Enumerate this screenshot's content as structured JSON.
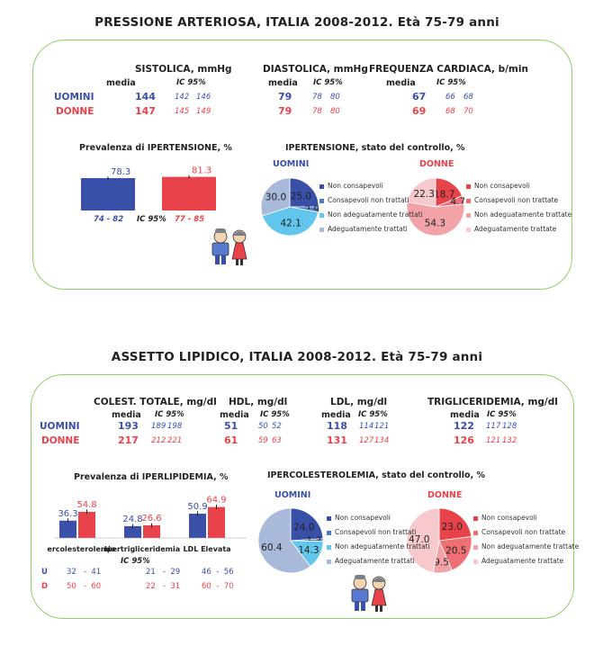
{
  "section1": {
    "title": "PRESSIONE ARTERIOSA, ITALIA 2008-2012. Età 75-79 anni",
    "table": {
      "groups": [
        "SISTOLICA, mmHg",
        "DIASTOLICA, mmHg",
        "FREQUENZA CARDIACA, b/min"
      ],
      "mean_label": "media",
      "ic_label": "IC 95%",
      "rows": [
        {
          "label": "UOMINI",
          "cells": [
            [
              "144",
              "142",
              "146"
            ],
            [
              "79",
              "78",
              "80"
            ],
            [
              "67",
              "66",
              "68"
            ]
          ]
        },
        {
          "label": "DONNE",
          "cells": [
            [
              "147",
              "145",
              "149"
            ],
            [
              "79",
              "78",
              "80"
            ],
            [
              "69",
              "68",
              "70"
            ]
          ]
        }
      ]
    },
    "prev_title": "Prevalenza di IPERTENSIONE, %",
    "prev_ci": [
      "74 - 82",
      "77 - 85"
    ],
    "prev_ic_label": "IC 95%",
    "control_title": "IPERTENSIONE, stato del controllo, %",
    "men_label": "UOMINI",
    "women_label": "DONNE",
    "legend_men": [
      "Non consapevoli",
      "Consapevoli non trattati",
      "Non adeguatamente trattati",
      "Adeguatamente trattati"
    ],
    "legend_women": [
      "Non consapevoli",
      "Consapevoli non trattate",
      "Non adeguatamente trattate",
      "Adeguatamente trattate"
    ]
  },
  "section2": {
    "title": "ASSETTO LIPIDICO, ITALIA 2008-2012. Età 75-79 anni",
    "table": {
      "groups": [
        "COLEST. TOTALE, mg/dl",
        "HDL, mg/dl",
        "LDL, mg/dl",
        "TRIGLICERIDEMIA, mg/dl"
      ],
      "mean_label": "media",
      "ic_label": "IC 95%",
      "rows": [
        {
          "label": "UOMINI",
          "cells": [
            [
              "193",
              "189",
              "198"
            ],
            [
              "51",
              "50",
              "52"
            ],
            [
              "118",
              "114",
              "121"
            ],
            [
              "122",
              "117",
              "128"
            ]
          ]
        },
        {
          "label": "DONNE",
          "cells": [
            [
              "217",
              "212",
              "221"
            ],
            [
              "61",
              "59",
              "63"
            ],
            [
              "131",
              "127",
              "134"
            ],
            [
              "126",
              "121",
              "132"
            ]
          ]
        }
      ]
    },
    "prev_title": "Prevalenza di IPERLIPIDEMIA, %",
    "prev_ic_label": "IC 95%",
    "ci_rows": [
      {
        "label": "U",
        "values": [
          "32   -  41",
          "21   -  29",
          "46  -  56"
        ]
      },
      {
        "label": "D",
        "values": [
          "50   -  60",
          "22   -  31",
          "60  -  70"
        ]
      }
    ],
    "control_title": "IPERCOLESTEROLEMIA, stato del controllo, %",
    "men_label": "UOMINI",
    "women_label": "DONNE",
    "legend_men": [
      "Non consapevoli",
      "Consapevoli non trattati",
      "Non adeguatamente trattati",
      "Adeguatamente trattati"
    ],
    "legend_women": [
      "Non consapevoli",
      "Consapevoli non trattate",
      "Non adeguatamente trattate",
      "Adeguatamente trattate"
    ]
  },
  "colors": {
    "men": "#3a4fa8",
    "women": "#e8434b",
    "panel_border": "#8fd06a",
    "men_pie": [
      "#3a4fa8",
      "#4a7cc4",
      "#62c6ec",
      "#a9b9da"
    ],
    "women_pie": [
      "#e8434b",
      "#ee6f74",
      "#f3a3a8",
      "#f7c9cd"
    ]
  },
  "chart_data": [
    {
      "type": "bar",
      "title": "Prevalenza di IPERTENSIONE, %",
      "series": [
        {
          "name": "UOMINI",
          "values": [
            78.3
          ],
          "ci": [
            [
              74,
              82
            ]
          ]
        },
        {
          "name": "DONNE",
          "values": [
            81.3
          ],
          "ci": [
            [
              77,
              85
            ]
          ]
        }
      ],
      "ylim": [
        0,
        100
      ]
    },
    {
      "type": "pie",
      "title": "IPERTENSIONE, stato del controllo, % — UOMINI",
      "labels": [
        "Non consapevoli",
        "Consapevoli non trattati",
        "Non adeguatamente trattati",
        "Adeguatamente trattati"
      ],
      "values": [
        25.0,
        2.9,
        42.1,
        30.0
      ],
      "value_labels": [
        "25.0",
        "2.9",
        "42.1",
        "30.0"
      ]
    },
    {
      "type": "pie",
      "title": "IPERTENSIONE, stato del controllo, % — DONNE",
      "labels": [
        "Non consapevoli",
        "Consapevoli non trattate",
        "Non adeguatamente trattate",
        "Adeguatamente trattate"
      ],
      "values": [
        18.7,
        4.7,
        54.3,
        22.3
      ],
      "value_labels": [
        "18.7",
        "4.7",
        "54.3",
        "22.3"
      ]
    },
    {
      "type": "bar",
      "title": "Prevalenza di IPERLIPIDEMIA, %",
      "categories": [
        "Ipercolesterolemia",
        "Ipertrigliceridemia",
        "LDL Elevata"
      ],
      "series": [
        {
          "name": "U",
          "values": [
            36.3,
            24.8,
            50.9
          ],
          "ci": [
            [
              32,
              41
            ],
            [
              21,
              29
            ],
            [
              46,
              56
            ]
          ]
        },
        {
          "name": "D",
          "values": [
            54.8,
            26.6,
            64.9
          ],
          "ci": [
            [
              50,
              60
            ],
            [
              22,
              31
            ],
            [
              60,
              70
            ]
          ]
        }
      ],
      "ylim": [
        0,
        70
      ]
    },
    {
      "type": "pie",
      "title": "IPERCOLESTEROLEMIA, stato del controllo, % — UOMINI",
      "labels": [
        "Non consapevoli",
        "Consapevoli non trattati",
        "Non adeguatamente trattati",
        "Adeguatamente trattati"
      ],
      "values": [
        24.0,
        1.3,
        14.3,
        60.4
      ],
      "value_labels": [
        "24.0",
        "1.3",
        "14.3",
        "60.4"
      ]
    },
    {
      "type": "pie",
      "title": "IPERCOLESTEROLEMIA, stato del controllo, % — DONNE",
      "labels": [
        "Non consapevoli",
        "Consapevoli non trattate",
        "Non adeguatamente trattate",
        "Adeguatamente trattate"
      ],
      "values": [
        23.0,
        20.5,
        9.5,
        47.0
      ],
      "value_labels": [
        "23.0",
        "20.5",
        "9.5",
        "47.0"
      ]
    }
  ]
}
